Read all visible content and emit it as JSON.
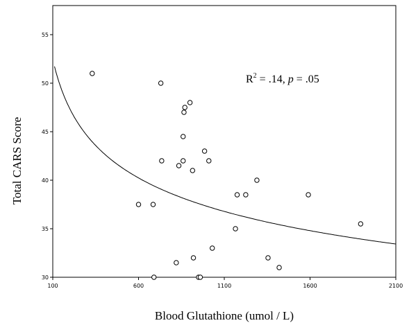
{
  "chart_data": {
    "type": "scatter",
    "xlabel": "Blood Glutathione (umol / L)",
    "ylabel": "Total CARS Score",
    "xlim": [
      100,
      2100
    ],
    "ylim": [
      30,
      58
    ],
    "xticks": [
      100,
      600,
      1100,
      1600,
      2100
    ],
    "yticks": [
      30,
      35,
      40,
      45,
      50,
      55
    ],
    "annotation": {
      "r_prefix": "R",
      "r_exp": "2",
      "r_mid": " = .14, ",
      "p_letter": "p",
      "p_value": " = .05"
    },
    "series": [
      {
        "marker": "circle",
        "points": [
          [
            330,
            51
          ],
          [
            600,
            37.5
          ],
          [
            685,
            37.5
          ],
          [
            690,
            30
          ],
          [
            730,
            50
          ],
          [
            735,
            42
          ],
          [
            820,
            31.5
          ],
          [
            835,
            41.5
          ],
          [
            860,
            42
          ],
          [
            860,
            44.5
          ],
          [
            865,
            47
          ],
          [
            870,
            47.5
          ],
          [
            900,
            48
          ],
          [
            915,
            41
          ],
          [
            920,
            32
          ],
          [
            950,
            30
          ],
          [
            960,
            30
          ],
          [
            985,
            43
          ],
          [
            1010,
            42
          ],
          [
            1030,
            33
          ],
          [
            1165,
            35
          ],
          [
            1175,
            38.5
          ],
          [
            1225,
            38.5
          ],
          [
            1290,
            40
          ],
          [
            1355,
            32
          ],
          [
            1420,
            31
          ],
          [
            1590,
            38.5
          ],
          [
            1895,
            35.5
          ]
        ]
      }
    ],
    "fit_curve": {
      "model": "power",
      "a": 103.7,
      "b": -0.148,
      "x_range": [
        110,
        2100
      ]
    }
  }
}
